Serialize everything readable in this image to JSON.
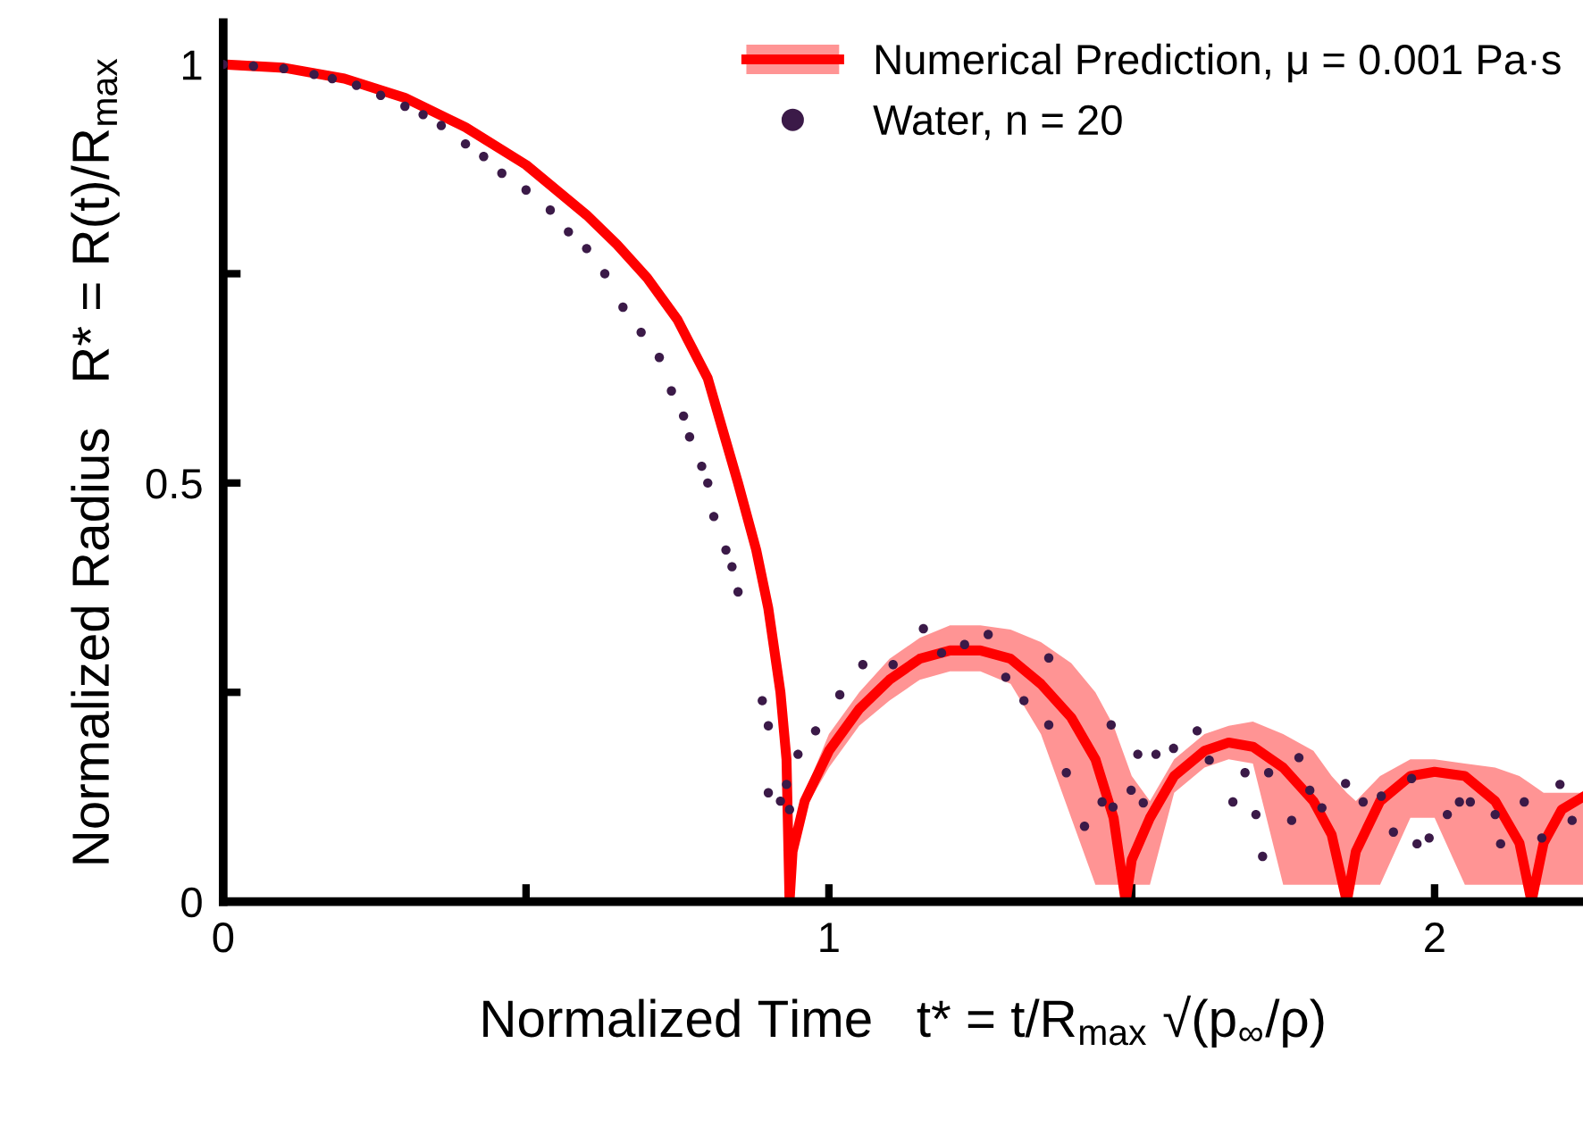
{
  "chart_data": {
    "type": "line",
    "xlabel": "Normalized Time   t* = t/R$_{max}$ √(p$_{∞}$/ρ)",
    "ylabel": "Normalized Radius   R* = R(t)/R$_{max}$",
    "xlim": [
      0,
      2.245
    ],
    "ylim": [
      0,
      1.05
    ],
    "xticks": [
      0,
      {
        "value": 0.5,
        "label": null
      },
      1,
      {
        "value": 1.5,
        "label": null
      },
      2
    ],
    "yticks": [
      0,
      {
        "value": 0.25,
        "label": null
      },
      0.5,
      {
        "value": 0.75,
        "label": null
      },
      1
    ],
    "grid": false,
    "legend": "top right",
    "series": [
      {
        "name": "Numerical Prediction, μ = 0.001 Pa·s",
        "color": "#ff0000",
        "line_style": "solid",
        "marker": "none",
        "x": [
          0,
          0.1,
          0.2,
          0.3,
          0.4,
          0.5,
          0.6,
          0.65,
          0.7,
          0.75,
          0.8,
          0.85,
          0.88,
          0.9,
          0.92,
          0.93,
          0.935,
          0.94,
          0.96,
          1.0,
          1.05,
          1.1,
          1.15,
          1.2,
          1.25,
          1.3,
          1.35,
          1.4,
          1.44,
          1.47,
          1.49,
          1.5,
          1.53,
          1.57,
          1.62,
          1.66,
          1.7,
          1.75,
          1.8,
          1.83,
          1.855,
          1.87,
          1.91,
          1.96,
          2.0,
          2.05,
          2.1,
          2.14,
          2.16,
          2.18,
          2.21,
          2.245
        ],
        "values": [
          1,
          0.996,
          0.983,
          0.96,
          0.925,
          0.88,
          0.82,
          0.785,
          0.745,
          0.695,
          0.625,
          0.5,
          0.42,
          0.35,
          0.25,
          0.17,
          0,
          0.06,
          0.12,
          0.18,
          0.23,
          0.265,
          0.29,
          0.3,
          0.3,
          0.29,
          0.26,
          0.22,
          0.17,
          0.1,
          0,
          0.05,
          0.1,
          0.15,
          0.18,
          0.19,
          0.185,
          0.16,
          0.12,
          0.08,
          0,
          0.06,
          0.12,
          0.15,
          0.155,
          0.15,
          0.12,
          0.07,
          0,
          0.07,
          0.11,
          0.125
        ],
        "lower": [
          null,
          null,
          null,
          null,
          null,
          null,
          null,
          null,
          null,
          null,
          null,
          null,
          null,
          null,
          null,
          null,
          null,
          null,
          0.11,
          0.16,
          0.21,
          0.24,
          0.265,
          0.275,
          0.275,
          0.26,
          0.2,
          0.1,
          0.02,
          0.02,
          0.02,
          0.02,
          0.02,
          0.13,
          0.16,
          0.17,
          0.165,
          0.02,
          0.02,
          0.02,
          0.02,
          0.02,
          0.02,
          0.1,
          0.1,
          0.02,
          0.02,
          0.02,
          0.02,
          0.02,
          0.02,
          0.02
        ],
        "upper": [
          null,
          null,
          null,
          null,
          null,
          null,
          null,
          null,
          null,
          null,
          null,
          null,
          null,
          null,
          null,
          null,
          null,
          null,
          0.13,
          0.2,
          0.25,
          0.29,
          0.315,
          0.33,
          0.33,
          0.325,
          0.31,
          0.285,
          0.25,
          0.21,
          0.17,
          0.15,
          0.12,
          0.17,
          0.2,
          0.21,
          0.215,
          0.2,
          0.18,
          0.15,
          0.13,
          0.12,
          0.15,
          0.17,
          0.17,
          0.165,
          0.16,
          0.15,
          0.14,
          0.13,
          0.13,
          0.13
        ]
      },
      {
        "type": "scatter",
        "name": "Water, n = 20",
        "color": "#3b1a48",
        "marker": "circle",
        "x": [
          0.0,
          0.05,
          0.1,
          0.15,
          0.18,
          0.22,
          0.26,
          0.3,
          0.33,
          0.36,
          0.4,
          0.43,
          0.46,
          0.5,
          0.54,
          0.57,
          0.6,
          0.63,
          0.66,
          0.69,
          0.72,
          0.74,
          0.76,
          0.77,
          0.79,
          0.8,
          0.81,
          0.83,
          0.84,
          0.85,
          0.89,
          0.9,
          0.9,
          0.92,
          0.93,
          0.935,
          0.949,
          0.978,
          1.018,
          1.056,
          1.106,
          1.156,
          1.186,
          1.224,
          1.263,
          1.292,
          1.322,
          1.363,
          1.363,
          1.392,
          1.422,
          1.451,
          1.469,
          1.466,
          1.499,
          1.519,
          1.51,
          1.54,
          1.569,
          1.608,
          1.628,
          1.667,
          1.687,
          1.705,
          1.716,
          1.726,
          1.764,
          1.776,
          1.794,
          1.814,
          1.853,
          1.882,
          1.912,
          1.932,
          1.962,
          1.971,
          1.991,
          2.021,
          2.041,
          2.059,
          2.1,
          2.109,
          2.148,
          2.177,
          2.207,
          2.227
        ],
        "values": [
          1.0,
          0.998,
          0.995,
          0.988,
          0.983,
          0.975,
          0.963,
          0.95,
          0.94,
          0.927,
          0.905,
          0.89,
          0.87,
          0.85,
          0.826,
          0.8,
          0.78,
          0.75,
          0.71,
          0.68,
          0.65,
          0.61,
          0.58,
          0.555,
          0.52,
          0.5,
          0.46,
          0.42,
          0.4,
          0.37,
          0.24,
          0.21,
          0.13,
          0.12,
          0.14,
          0.11,
          0.176,
          0.204,
          0.247,
          0.283,
          0.283,
          0.326,
          0.297,
          0.307,
          0.319,
          0.268,
          0.24,
          0.291,
          0.211,
          0.154,
          0.09,
          0.119,
          0.113,
          0.211,
          0.133,
          0.118,
          0.176,
          0.176,
          0.183,
          0.204,
          0.169,
          0.119,
          0.154,
          0.104,
          0.054,
          0.154,
          0.097,
          0.172,
          0.133,
          0.112,
          0.141,
          0.119,
          0.126,
          0.083,
          0.147,
          0.069,
          0.076,
          0.104,
          0.119,
          0.119,
          0.104,
          0.069,
          0.119,
          0.076,
          0.14,
          0.097
        ]
      }
    ]
  }
}
